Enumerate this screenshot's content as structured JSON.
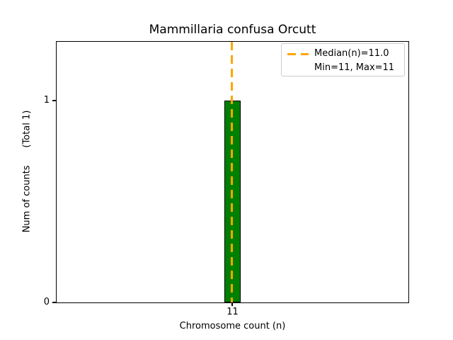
{
  "figure": {
    "title": "Mammillaria confusa Orcutt",
    "xlabel": "Chromosome count (n)",
    "ylabel": "Num of counts      (Total 1)",
    "x_ticks": [
      "11"
    ],
    "y_ticks": [
      "0",
      "1"
    ],
    "legend": {
      "items": [
        {
          "marker": "orange-dashed-line",
          "label": "Median(n)=11.0"
        },
        {
          "marker": "none",
          "label": "Min=11, Max=11"
        }
      ]
    },
    "colors": {
      "bar_fill": "#008000",
      "bar_edge": "#000000",
      "median_line": "#FFA500",
      "axes": "#000000",
      "background": "#FFFFFF",
      "legend_border": "#CCCCCC"
    }
  },
  "chart_data": {
    "type": "bar",
    "title": "Mammillaria confusa Orcutt",
    "xlabel": "Chromosome count (n)",
    "ylabel": "Num of counts (Total 1)",
    "categories": [
      11
    ],
    "values": [
      1
    ],
    "total_counts": 1,
    "median_n": 11.0,
    "min_n": 11,
    "max_n": 11,
    "ylim": [
      0,
      1.3
    ],
    "xtick_values": [
      11
    ],
    "ytick_values": [
      0,
      1
    ],
    "grid": false,
    "legend_position": "upper right",
    "annotations": [
      "Median(n)=11.0",
      "Min=11, Max=11"
    ]
  }
}
